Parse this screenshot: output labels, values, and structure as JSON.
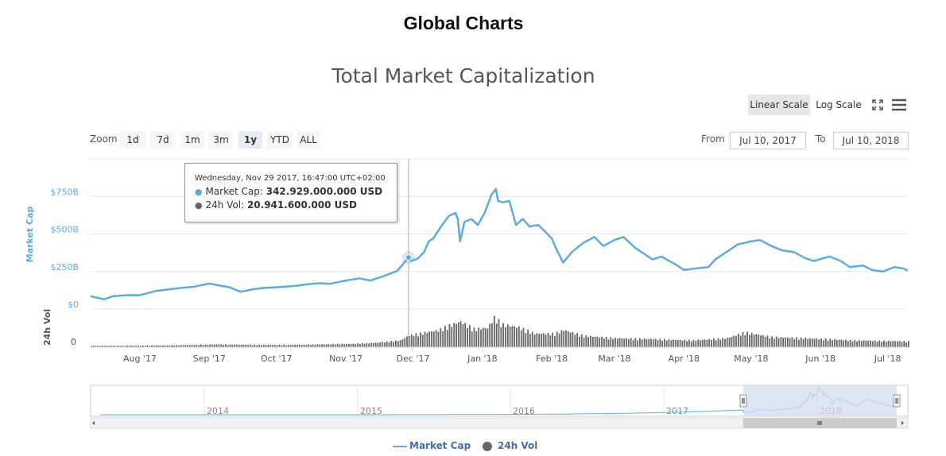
{
  "header": {
    "title": "Global Charts"
  },
  "chart_title": "Total Market Capitalization",
  "scale": {
    "linear_label": "Linear Scale",
    "log_label": "Log Scale",
    "active": "linear"
  },
  "toolbar_icons": [
    "fullscreen-icon",
    "menu-icon"
  ],
  "zoom": {
    "label": "Zoom",
    "buttons": [
      "1d",
      "7d",
      "1m",
      "3m",
      "1y",
      "YTD",
      "ALL"
    ],
    "active": "1y"
  },
  "range": {
    "from_label": "From",
    "from_value": "Jul 10, 2017",
    "to_label": "To",
    "to_value": "Jul 10, 2018"
  },
  "tooltip": {
    "date": "Wednesday, Nov 29 2017, 16:47:00 UTC+02:00",
    "market_cap_label": "Market Cap:",
    "market_cap_value": "342.929.000.000 USD",
    "volume_label": "24h Vol:",
    "volume_value": "20.941.600.000 USD"
  },
  "legend": {
    "market_cap": "Market Cap",
    "volume": "24h Vol"
  },
  "colors": {
    "market_cap": "#5bacdf",
    "volume": "#666666",
    "axis_label": "#5bacdf",
    "navigator_fill": "#d2dced"
  },
  "chart_data": {
    "type": "line",
    "ylabel": "Market Cap",
    "ylim": [
      0,
      1000
    ],
    "yticks": [
      {
        "value": 0,
        "label": "$0"
      },
      {
        "value": 250,
        "label": "$250B"
      },
      {
        "value": 500,
        "label": "$500B"
      },
      {
        "value": 750,
        "label": "$750B"
      }
    ],
    "x_range": [
      "2017-07-10",
      "2018-07-10"
    ],
    "xticks": [
      {
        "date": "2017-08-01",
        "label": "Aug '17"
      },
      {
        "date": "2017-09-01",
        "label": "Sep '17"
      },
      {
        "date": "2017-10-01",
        "label": "Oct '17"
      },
      {
        "date": "2017-11-01",
        "label": "Nov '17"
      },
      {
        "date": "2017-12-01",
        "label": "Dec '17"
      },
      {
        "date": "2018-01-01",
        "label": "Jan '18"
      },
      {
        "date": "2018-02-01",
        "label": "Feb '18"
      },
      {
        "date": "2018-03-01",
        "label": "Mar '18"
      },
      {
        "date": "2018-04-01",
        "label": "Apr '18"
      },
      {
        "date": "2018-05-01",
        "label": "May '18"
      },
      {
        "date": "2018-06-01",
        "label": "Jun '18"
      },
      {
        "date": "2018-07-01",
        "label": "Jul '18"
      }
    ],
    "market_cap_series": {
      "name": "Market Cap",
      "unit": "billion USD",
      "points": [
        [
          "2017-07-10",
          85
        ],
        [
          "2017-07-16",
          65
        ],
        [
          "2017-07-20",
          85
        ],
        [
          "2017-07-26",
          92
        ],
        [
          "2017-08-01",
          92
        ],
        [
          "2017-08-08",
          120
        ],
        [
          "2017-08-15",
          133
        ],
        [
          "2017-08-20",
          142
        ],
        [
          "2017-08-25",
          148
        ],
        [
          "2017-09-01",
          170
        ],
        [
          "2017-09-05",
          158
        ],
        [
          "2017-09-10",
          145
        ],
        [
          "2017-09-15",
          115
        ],
        [
          "2017-09-20",
          130
        ],
        [
          "2017-09-25",
          140
        ],
        [
          "2017-10-01",
          145
        ],
        [
          "2017-10-10",
          155
        ],
        [
          "2017-10-15",
          165
        ],
        [
          "2017-10-20",
          172
        ],
        [
          "2017-10-25",
          168
        ],
        [
          "2017-11-01",
          190
        ],
        [
          "2017-11-07",
          205
        ],
        [
          "2017-11-12",
          190
        ],
        [
          "2017-11-18",
          220
        ],
        [
          "2017-11-24",
          255
        ],
        [
          "2017-11-29",
          343
        ],
        [
          "2017-11-30",
          320
        ],
        [
          "2017-12-03",
          335
        ],
        [
          "2017-12-06",
          380
        ],
        [
          "2017-12-08",
          450
        ],
        [
          "2017-12-10",
          470
        ],
        [
          "2017-12-14",
          560
        ],
        [
          "2017-12-17",
          620
        ],
        [
          "2017-12-20",
          640
        ],
        [
          "2017-12-21",
          600
        ],
        [
          "2017-12-22",
          450
        ],
        [
          "2017-12-24",
          580
        ],
        [
          "2017-12-27",
          600
        ],
        [
          "2017-12-30",
          560
        ],
        [
          "2018-01-02",
          640
        ],
        [
          "2018-01-05",
          760
        ],
        [
          "2018-01-07",
          800
        ],
        [
          "2018-01-08",
          720
        ],
        [
          "2018-01-10",
          710
        ],
        [
          "2018-01-13",
          720
        ],
        [
          "2018-01-16",
          560
        ],
        [
          "2018-01-19",
          600
        ],
        [
          "2018-01-22",
          550
        ],
        [
          "2018-01-26",
          560
        ],
        [
          "2018-02-01",
          470
        ],
        [
          "2018-02-03",
          400
        ],
        [
          "2018-02-06",
          310
        ],
        [
          "2018-02-10",
          380
        ],
        [
          "2018-02-15",
          440
        ],
        [
          "2018-02-20",
          480
        ],
        [
          "2018-02-24",
          420
        ],
        [
          "2018-03-01",
          460
        ],
        [
          "2018-03-05",
          480
        ],
        [
          "2018-03-10",
          410
        ],
        [
          "2018-03-18",
          330
        ],
        [
          "2018-03-22",
          350
        ],
        [
          "2018-03-29",
          290
        ],
        [
          "2018-04-01",
          260
        ],
        [
          "2018-04-06",
          270
        ],
        [
          "2018-04-12",
          280
        ],
        [
          "2018-04-15",
          330
        ],
        [
          "2018-04-20",
          380
        ],
        [
          "2018-04-25",
          430
        ],
        [
          "2018-05-01",
          450
        ],
        [
          "2018-05-05",
          460
        ],
        [
          "2018-05-10",
          420
        ],
        [
          "2018-05-15",
          390
        ],
        [
          "2018-05-20",
          380
        ],
        [
          "2018-05-25",
          340
        ],
        [
          "2018-05-29",
          320
        ],
        [
          "2018-06-05",
          350
        ],
        [
          "2018-06-10",
          320
        ],
        [
          "2018-06-14",
          280
        ],
        [
          "2018-06-20",
          290
        ],
        [
          "2018-06-24",
          260
        ],
        [
          "2018-06-29",
          250
        ],
        [
          "2018-07-04",
          280
        ],
        [
          "2018-07-08",
          270
        ],
        [
          "2018-07-10",
          255
        ]
      ]
    },
    "volume_series": {
      "name": "24h Vol",
      "ylabel": "24h Vol",
      "ytick_label": "0",
      "max_billion_usd": 60,
      "points": [
        [
          "2017-07-10",
          2.5
        ],
        [
          "2017-07-25",
          2.5
        ],
        [
          "2017-08-10",
          3
        ],
        [
          "2017-08-25",
          4
        ],
        [
          "2017-09-05",
          5
        ],
        [
          "2017-09-20",
          4
        ],
        [
          "2017-10-05",
          4
        ],
        [
          "2017-10-20",
          5
        ],
        [
          "2017-11-05",
          6
        ],
        [
          "2017-11-15",
          8
        ],
        [
          "2017-11-25",
          12
        ],
        [
          "2017-11-29",
          21
        ],
        [
          "2017-12-05",
          25
        ],
        [
          "2017-12-12",
          30
        ],
        [
          "2017-12-17",
          38
        ],
        [
          "2017-12-22",
          45
        ],
        [
          "2017-12-28",
          32
        ],
        [
          "2018-01-03",
          34
        ],
        [
          "2018-01-06",
          52
        ],
        [
          "2018-01-10",
          40
        ],
        [
          "2018-01-17",
          35
        ],
        [
          "2018-01-24",
          24
        ],
        [
          "2018-02-02",
          24
        ],
        [
          "2018-02-06",
          30
        ],
        [
          "2018-02-15",
          20
        ],
        [
          "2018-03-01",
          16
        ],
        [
          "2018-03-20",
          14
        ],
        [
          "2018-04-05",
          12
        ],
        [
          "2018-04-20",
          16
        ],
        [
          "2018-04-28",
          26
        ],
        [
          "2018-05-10",
          18
        ],
        [
          "2018-05-30",
          15
        ],
        [
          "2018-06-15",
          12
        ],
        [
          "2018-07-01",
          11
        ],
        [
          "2018-07-10",
          10
        ]
      ]
    },
    "navigator": {
      "year_labels": [
        "2014",
        "2015",
        "2016",
        "2017",
        "2018"
      ]
    }
  }
}
